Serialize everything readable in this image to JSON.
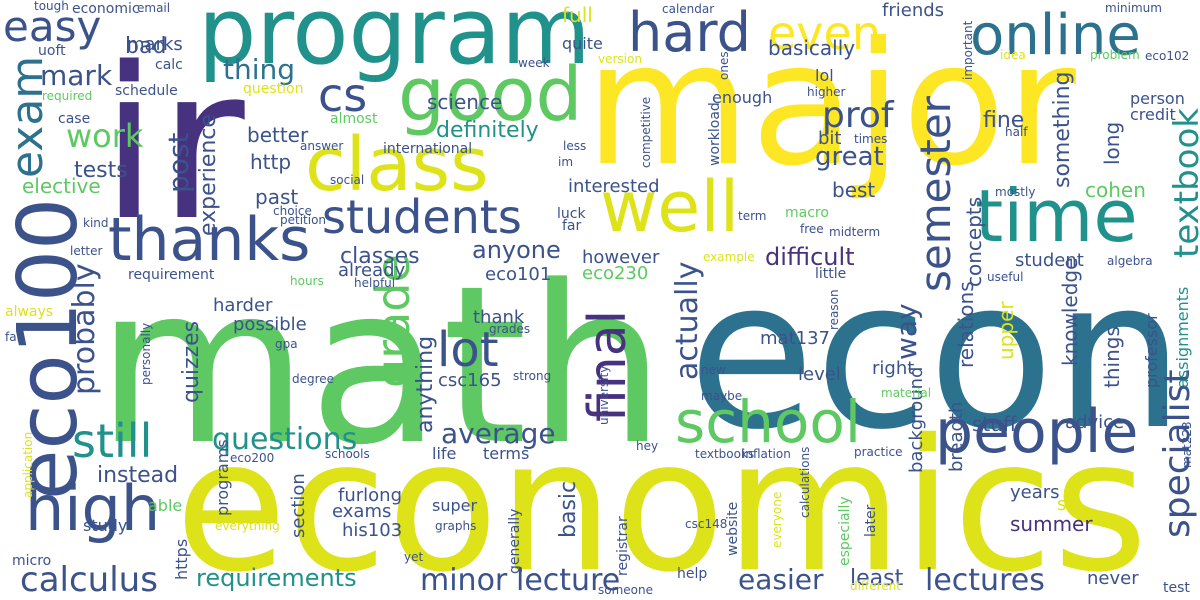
{
  "words": [
    {
      "text": "math",
      "color": "#5ec962",
      "vertical": false
    },
    {
      "text": "econ",
      "color": "#2c728e",
      "vertical": false
    },
    {
      "text": "economics",
      "color": "#dde318",
      "vertical": false
    },
    {
      "text": "major",
      "color": "#fde725",
      "vertical": false
    },
    {
      "text": "ir",
      "color": "#46327e",
      "vertical": false
    },
    {
      "text": "program",
      "color": "#21918c",
      "vertical": false
    },
    {
      "text": "eco100",
      "color": "#3b528b",
      "vertical": true
    },
    {
      "text": "well",
      "color": "#dde318",
      "vertical": false
    },
    {
      "text": "good",
      "color": "#5ec962",
      "vertical": false
    },
    {
      "text": "class",
      "color": "#dde318",
      "vertical": false
    },
    {
      "text": "time",
      "color": "#21918c",
      "vertical": false
    },
    {
      "text": "school",
      "color": "#5ec962",
      "vertical": false
    },
    {
      "text": "people",
      "color": "#3b528b",
      "vertical": false
    },
    {
      "text": "thanks",
      "color": "#3b528b",
      "vertical": false
    },
    {
      "text": "online",
      "color": "#2c728e",
      "vertical": false
    },
    {
      "text": "hard",
      "color": "#3b528b",
      "vertical": false
    },
    {
      "text": "even",
      "color": "#fde725",
      "vertical": false
    },
    {
      "text": "high",
      "color": "#3b528b",
      "vertical": false
    },
    {
      "text": "students",
      "color": "#3b528b",
      "vertical": false
    },
    {
      "text": "final",
      "color": "#46327e",
      "vertical": true
    },
    {
      "text": "still",
      "color": "#21918c",
      "vertical": false
    },
    {
      "text": "lot",
      "color": "#3b528b",
      "vertical": false
    },
    {
      "text": "grade",
      "color": "#5ec962",
      "vertical": true
    },
    {
      "text": "semester",
      "color": "#3b528b",
      "vertical": true
    },
    {
      "text": "easy",
      "color": "#3b528b",
      "vertical": false
    },
    {
      "text": "cs",
      "color": "#3b528b",
      "vertical": false
    },
    {
      "text": "exam",
      "color": "#2c728e",
      "vertical": true
    },
    {
      "text": "calculus",
      "color": "#3b528b",
      "vertical": false
    },
    {
      "text": "specialist",
      "color": "#3b528b",
      "vertical": true
    },
    {
      "text": "questions",
      "color": "#21918c",
      "vertical": false
    },
    {
      "text": "minor",
      "color": "#3b528b",
      "vertical": false
    },
    {
      "text": "lecture",
      "color": "#3b528b",
      "vertical": false
    },
    {
      "text": "easier",
      "color": "#3b528b",
      "vertical": false
    },
    {
      "text": "lectures",
      "color": "#3b528b",
      "vertical": false
    },
    {
      "text": "requirements",
      "color": "#21918c",
      "vertical": false
    },
    {
      "text": "average",
      "color": "#3b528b",
      "vertical": false
    },
    {
      "text": "prof",
      "color": "#3b528b",
      "vertical": false
    },
    {
      "text": "textbook",
      "color": "#21918c",
      "vertical": true
    },
    {
      "text": "work",
      "color": "#5ec962",
      "vertical": false
    },
    {
      "text": "mark",
      "color": "#3b528b",
      "vertical": false
    },
    {
      "text": "thing",
      "color": "#2c728e",
      "vertical": false
    },
    {
      "text": "definitely",
      "color": "#21918c",
      "vertical": false
    },
    {
      "text": "difficult",
      "color": "#46327e",
      "vertical": false
    },
    {
      "text": "actually",
      "color": "#3b528b",
      "vertical": true
    },
    {
      "text": "probably",
      "color": "#3b528b",
      "vertical": true
    },
    {
      "text": "post",
      "color": "#3b528b",
      "vertical": true
    },
    {
      "text": "way",
      "color": "#3b528b",
      "vertical": true
    },
    {
      "text": "instead",
      "color": "#3b528b",
      "vertical": false
    },
    {
      "text": "classes",
      "color": "#3b528b",
      "vertical": false
    },
    {
      "text": "anyone",
      "color": "#3b528b",
      "vertical": false
    },
    {
      "text": "great",
      "color": "#3b528b",
      "vertical": false
    },
    {
      "text": "science",
      "color": "#3b528b",
      "vertical": false
    },
    {
      "text": "tests",
      "color": "#3b528b",
      "vertical": false
    },
    {
      "text": "elective",
      "color": "#5ec962",
      "vertical": false
    },
    {
      "text": "better",
      "color": "#3b528b",
      "vertical": false
    },
    {
      "text": "http",
      "color": "#3b528b",
      "vertical": false
    },
    {
      "text": "past",
      "color": "#3b528b",
      "vertical": false
    },
    {
      "text": "experience",
      "color": "#3b528b",
      "vertical": true
    },
    {
      "text": "interested",
      "color": "#3b528b",
      "vertical": false
    },
    {
      "text": "best",
      "color": "#3b528b",
      "vertical": false
    },
    {
      "text": "cohen",
      "color": "#5ec962",
      "vertical": false
    },
    {
      "text": "fine",
      "color": "#3b528b",
      "vertical": false
    },
    {
      "text": "something",
      "color": "#3b528b",
      "vertical": true
    },
    {
      "text": "basically",
      "color": "#3b528b",
      "vertical": false
    },
    {
      "text": "bad",
      "color": "#3b528b",
      "vertical": false
    },
    {
      "text": "marks",
      "color": "#3b528b",
      "vertical": false
    },
    {
      "text": "full",
      "color": "#dde318",
      "vertical": false
    },
    {
      "text": "quite",
      "color": "#3b528b",
      "vertical": false
    },
    {
      "text": "friends",
      "color": "#3b528b",
      "vertical": false
    },
    {
      "text": "enough",
      "color": "#3b528b",
      "vertical": false
    },
    {
      "text": "lol",
      "color": "#3b528b",
      "vertical": false
    },
    {
      "text": "bit",
      "color": "#3b528b",
      "vertical": false
    },
    {
      "text": "long",
      "color": "#3b528b",
      "vertical": true
    },
    {
      "text": "person",
      "color": "#3b528b",
      "vertical": false
    },
    {
      "text": "credit",
      "color": "#3b528b",
      "vertical": false
    },
    {
      "text": "already",
      "color": "#3b528b",
      "vertical": false
    },
    {
      "text": "eco101",
      "color": "#3b528b",
      "vertical": false
    },
    {
      "text": "eco230",
      "color": "#5ec962",
      "vertical": false
    },
    {
      "text": "however",
      "color": "#3b528b",
      "vertical": false
    },
    {
      "text": "concepts",
      "color": "#3b528b",
      "vertical": true
    },
    {
      "text": "student",
      "color": "#3b528b",
      "vertical": false
    },
    {
      "text": "harder",
      "color": "#3b528b",
      "vertical": false
    },
    {
      "text": "possible",
      "color": "#3b528b",
      "vertical": false
    },
    {
      "text": "quizzes",
      "color": "#3b528b",
      "vertical": true
    },
    {
      "text": "thank",
      "color": "#3b528b",
      "vertical": false
    },
    {
      "text": "csc165",
      "color": "#3b528b",
      "vertical": false
    },
    {
      "text": "mat137",
      "color": "#3b528b",
      "vertical": false
    },
    {
      "text": "level",
      "color": "#3b528b",
      "vertical": false
    },
    {
      "text": "right",
      "color": "#3b528b",
      "vertical": false
    },
    {
      "text": "relations",
      "color": "#3b528b",
      "vertical": true
    },
    {
      "text": "upper",
      "color": "#dde318",
      "vertical": true
    },
    {
      "text": "knowledge",
      "color": "#3b528b",
      "vertical": true
    },
    {
      "text": "things",
      "color": "#3b528b",
      "vertical": true
    },
    {
      "text": "professor",
      "color": "#3b528b",
      "vertical": true
    },
    {
      "text": "assignments",
      "color": "#21918c",
      "vertical": true
    },
    {
      "text": "anything",
      "color": "#3b528b",
      "vertical": true
    },
    {
      "text": "background",
      "color": "#3b528b",
      "vertical": true
    },
    {
      "text": "breadth",
      "color": "#3b528b",
      "vertical": true
    },
    {
      "text": "stuff",
      "color": "#3b528b",
      "vertical": false
    },
    {
      "text": "advice",
      "color": "#3b528b",
      "vertical": false
    },
    {
      "text": "years",
      "color": "#3b528b",
      "vertical": false
    },
    {
      "text": "summer",
      "color": "#46327e",
      "vertical": false
    },
    {
      "text": "sci",
      "color": "#dde318",
      "vertical": false
    },
    {
      "text": "furlong",
      "color": "#3b528b",
      "vertical": false
    },
    {
      "text": "exams",
      "color": "#3b528b",
      "vertical": false
    },
    {
      "text": "his103",
      "color": "#3b528b",
      "vertical": false
    },
    {
      "text": "section",
      "color": "#3b528b",
      "vertical": true
    },
    {
      "text": "super",
      "color": "#3b528b",
      "vertical": false
    },
    {
      "text": "basic",
      "color": "#3b528b",
      "vertical": true
    },
    {
      "text": "least",
      "color": "#3b528b",
      "vertical": false
    },
    {
      "text": "never",
      "color": "#3b528b",
      "vertical": false
    },
    {
      "text": "programs",
      "color": "#3b528b",
      "vertical": true
    },
    {
      "text": "study",
      "color": "#3b528b",
      "vertical": false
    },
    {
      "text": "able",
      "color": "#5ec962",
      "vertical": false
    },
    {
      "text": "micro",
      "color": "#3b528b",
      "vertical": false
    },
    {
      "text": "https",
      "color": "#3b528b",
      "vertical": true
    },
    {
      "text": "generally",
      "color": "#3b528b",
      "vertical": true
    },
    {
      "text": "registrar",
      "color": "#3b528b",
      "vertical": true
    },
    {
      "text": "website",
      "color": "#3b528b",
      "vertical": true
    },
    {
      "text": "especially",
      "color": "#5ec962",
      "vertical": true
    },
    {
      "text": "later",
      "color": "#3b528b",
      "vertical": true
    },
    {
      "text": "terms",
      "color": "#3b528b",
      "vertical": false
    },
    {
      "text": "life",
      "color": "#3b528b",
      "vertical": false
    },
    {
      "text": "economic",
      "color": "#3b528b",
      "vertical": false
    },
    {
      "text": "tough",
      "color": "#3b528b",
      "vertical": false
    },
    {
      "text": "email",
      "color": "#3b528b",
      "vertical": false
    },
    {
      "text": "uoft",
      "color": "#3b528b",
      "vertical": false
    },
    {
      "text": "calc",
      "color": "#3b528b",
      "vertical": false
    },
    {
      "text": "schedule",
      "color": "#3b528b",
      "vertical": false
    },
    {
      "text": "question",
      "color": "#dde318",
      "vertical": false
    },
    {
      "text": "almost",
      "color": "#5ec962",
      "vertical": false
    },
    {
      "text": "international",
      "color": "#3b528b",
      "vertical": false
    },
    {
      "text": "case",
      "color": "#3b528b",
      "vertical": false
    },
    {
      "text": "required",
      "color": "#5ec962",
      "vertical": false
    },
    {
      "text": "answer",
      "color": "#3b528b",
      "vertical": false
    },
    {
      "text": "less",
      "color": "#3b528b",
      "vertical": false
    },
    {
      "text": "social",
      "color": "#3b528b",
      "vertical": false
    },
    {
      "text": "im",
      "color": "#3b528b",
      "vertical": false
    },
    {
      "text": "luck",
      "color": "#3b528b",
      "vertical": false
    },
    {
      "text": "far",
      "color": "#3b528b",
      "vertical": false
    },
    {
      "text": "macro",
      "color": "#5ec962",
      "vertical": false
    },
    {
      "text": "term",
      "color": "#3b528b",
      "vertical": false
    },
    {
      "text": "midterm",
      "color": "#3b528b",
      "vertical": false
    },
    {
      "text": "free",
      "color": "#3b528b",
      "vertical": false
    },
    {
      "text": "little",
      "color": "#3b528b",
      "vertical": false
    },
    {
      "text": "useful",
      "color": "#3b528b",
      "vertical": false
    },
    {
      "text": "algebra",
      "color": "#3b528b",
      "vertical": false
    },
    {
      "text": "choice",
      "color": "#3b528b",
      "vertical": false
    },
    {
      "text": "petition",
      "color": "#3b528b",
      "vertical": false
    },
    {
      "text": "kind",
      "color": "#3b528b",
      "vertical": false
    },
    {
      "text": "letter",
      "color": "#3b528b",
      "vertical": false
    },
    {
      "text": "requirement",
      "color": "#3b528b",
      "vertical": false
    },
    {
      "text": "hours",
      "color": "#5ec962",
      "vertical": false
    },
    {
      "text": "helpful",
      "color": "#3b528b",
      "vertical": false
    },
    {
      "text": "always",
      "color": "#dde318",
      "vertical": false
    },
    {
      "text": "fall",
      "color": "#3b528b",
      "vertical": false
    },
    {
      "text": "gpa",
      "color": "#3b528b",
      "vertical": false
    },
    {
      "text": "degree",
      "color": "#3b528b",
      "vertical": false
    },
    {
      "text": "personally",
      "color": "#3b528b",
      "vertical": true
    },
    {
      "text": "grades",
      "color": "#3b528b",
      "vertical": false
    },
    {
      "text": "strong",
      "color": "#3b528b",
      "vertical": false
    },
    {
      "text": "university",
      "color": "#3b528b",
      "vertical": true
    },
    {
      "text": "schools",
      "color": "#3b528b",
      "vertical": false
    },
    {
      "text": "eco200",
      "color": "#3b528b",
      "vertical": false
    },
    {
      "text": "everything",
      "color": "#dde318",
      "vertical": false
    },
    {
      "text": "graphs",
      "color": "#3b528b",
      "vertical": false
    },
    {
      "text": "yet",
      "color": "#3b528b",
      "vertical": false
    },
    {
      "text": "someone",
      "color": "#3b528b",
      "vertical": false
    },
    {
      "text": "help",
      "color": "#3b528b",
      "vertical": false
    },
    {
      "text": "csc148",
      "color": "#3b528b",
      "vertical": false
    },
    {
      "text": "hey",
      "color": "#3b528b",
      "vertical": false
    },
    {
      "text": "textbooks",
      "color": "#3b528b",
      "vertical": false
    },
    {
      "text": "inflation",
      "color": "#3b528b",
      "vertical": false
    },
    {
      "text": "practice",
      "color": "#3b528b",
      "vertical": false
    },
    {
      "text": "maybe",
      "color": "#3b528b",
      "vertical": false
    },
    {
      "text": "new",
      "color": "#3b528b",
      "vertical": false
    },
    {
      "text": "material",
      "color": "#5ec962",
      "vertical": false
    },
    {
      "text": "example",
      "color": "#dde318",
      "vertical": false
    },
    {
      "text": "reason",
      "color": "#3b528b",
      "vertical": true
    },
    {
      "text": "calculations",
      "color": "#3b528b",
      "vertical": true
    },
    {
      "text": "everyone",
      "color": "#dde318",
      "vertical": true
    },
    {
      "text": "different",
      "color": "#dde318",
      "vertical": false
    },
    {
      "text": "test",
      "color": "#3b528b",
      "vertical": false
    },
    {
      "text": "mat223",
      "color": "#3b528b",
      "vertical": true
    },
    {
      "text": "application",
      "color": "#dde318",
      "vertical": true
    },
    {
      "text": "calendar",
      "color": "#3b528b",
      "vertical": false
    },
    {
      "text": "week",
      "color": "#3b528b",
      "vertical": false
    },
    {
      "text": "version",
      "color": "#dde318",
      "vertical": false
    },
    {
      "text": "ones",
      "color": "#3b528b",
      "vertical": true
    },
    {
      "text": "competitive",
      "color": "#3b528b",
      "vertical": true
    },
    {
      "text": "workload",
      "color": "#3b528b",
      "vertical": true
    },
    {
      "text": "higher",
      "color": "#3b528b",
      "vertical": false
    },
    {
      "text": "times",
      "color": "#3b528b",
      "vertical": false
    },
    {
      "text": "important",
      "color": "#3b528b",
      "vertical": true
    },
    {
      "text": "idea",
      "color": "#dde318",
      "vertical": false
    },
    {
      "text": "mostly",
      "color": "#3b528b",
      "vertical": false
    },
    {
      "text": "half",
      "color": "#3b528b",
      "vertical": false
    },
    {
      "text": "minimum",
      "color": "#3b528b",
      "vertical": false
    },
    {
      "text": "problem",
      "color": "#5ec962",
      "vertical": false
    },
    {
      "text": "eco102",
      "color": "#3b528b",
      "vertical": false
    }
  ]
}
